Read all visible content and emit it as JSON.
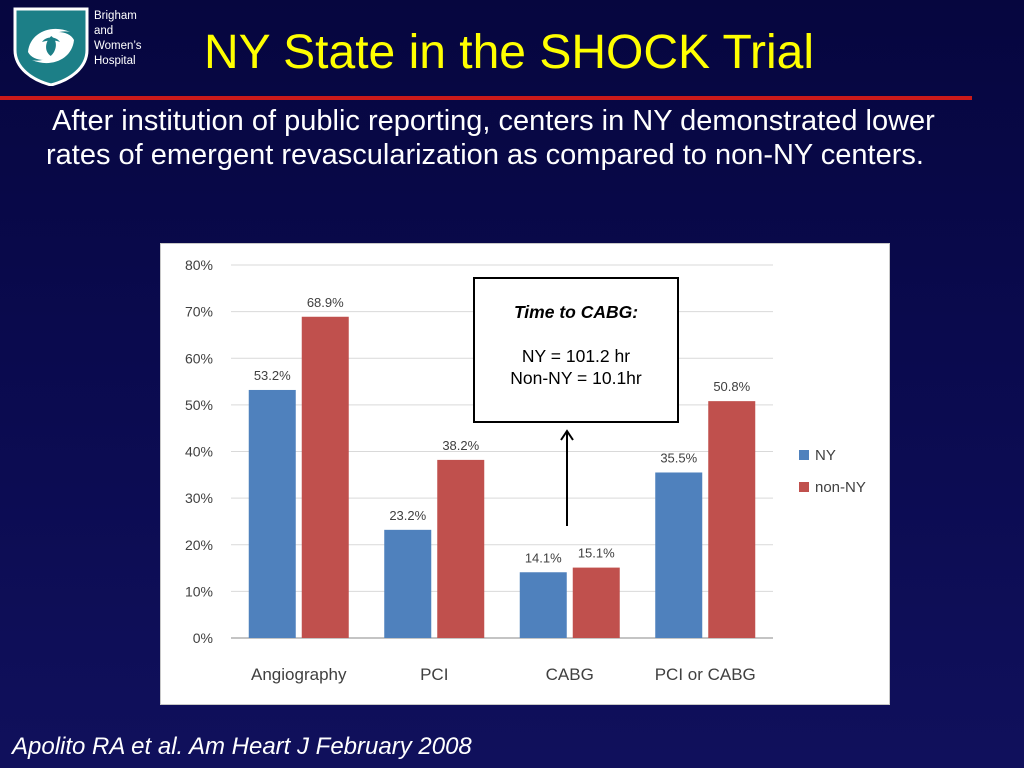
{
  "header": {
    "logo_icon": "hospital-shield-logo-icon",
    "hospital_name": [
      "Brigham",
      "and",
      "Women’s",
      "Hospital"
    ],
    "title": "NY State in the SHOCK Trial",
    "accent_color": "#ffff00",
    "rule_color": "#cc1a1a"
  },
  "body": {
    "text": "After institution of public reporting, centers in NY demonstrated lower rates of emergent revascularization as compared to non-NY centers."
  },
  "callout": {
    "title": "Time to CABG:",
    "line1": "NY = 101.2 hr",
    "line2": "Non-NY = 10.1hr"
  },
  "citation": "Apolito RA et al.  Am Heart J  February 2008",
  "chart_data": {
    "type": "bar",
    "categories": [
      "Angiography",
      "PCI",
      "CABG",
      "PCI or CABG"
    ],
    "series": [
      {
        "name": "NY",
        "color": "#4f81bd",
        "values": [
          53.2,
          23.2,
          14.1,
          35.5
        ],
        "labels": [
          "53.2%",
          "23.2%",
          "14.1%",
          "35.5%"
        ]
      },
      {
        "name": "non-NY",
        "color": "#c0504d",
        "values": [
          68.9,
          38.2,
          15.1,
          50.8
        ],
        "labels": [
          "68.9%",
          "38.2%",
          "15.1%",
          "50.8%"
        ]
      }
    ],
    "ylim": [
      0,
      80
    ],
    "yticks": [
      "0%",
      "10%",
      "20%",
      "30%",
      "40%",
      "50%",
      "60%",
      "70%",
      "80%"
    ],
    "grid": true,
    "legend_position": "right"
  }
}
